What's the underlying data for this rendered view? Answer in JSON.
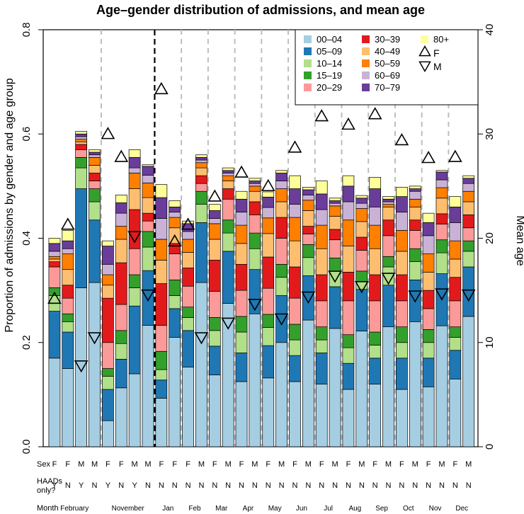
{
  "chart_data": {
    "type": "bar",
    "stacked": true,
    "title": "Age–gender distribution of admissions, and mean age",
    "ylabel": "Proportion of admissions by gender and age group",
    "y2label": "Mean age",
    "ylim": [
      0,
      0.8
    ],
    "y2lim": [
      0,
      40
    ],
    "yticks": [
      "0.0",
      "0.2",
      "0.4",
      "0.6",
      "0.8"
    ],
    "y2ticks": [
      "0",
      "10",
      "20",
      "30",
      "40"
    ],
    "row_labels": {
      "sex": "Sex",
      "haads": "HAADs\nonly?",
      "month": "Month"
    },
    "age_groups": [
      "00–04",
      "05–09",
      "10–14",
      "15–19",
      "20–29",
      "30–39",
      "40–49",
      "50–59",
      "60–69",
      "70–79",
      "80+"
    ],
    "colors": [
      "#a6cee3",
      "#1f78b4",
      "#b2df8a",
      "#33a02c",
      "#fb9a99",
      "#e31a1c",
      "#fdbf6f",
      "#ff7f00",
      "#cab2d6",
      "#6a3d9a",
      "#ffff99"
    ],
    "legend": {
      "position": "top-right",
      "f_label": "F",
      "m_label": "M",
      "f_symbol": "△",
      "m_symbol": "▽"
    },
    "bars": [
      {
        "sex": "F",
        "haads": "Y",
        "segments": [
          0.17,
          0.09,
          0.03,
          0.015,
          0.04,
          0.01,
          0.005,
          0.005,
          0.01,
          0.015,
          0.01
        ],
        "mean_age": 14.2
      },
      {
        "sex": "F",
        "haads": "N",
        "segments": [
          0.15,
          0.07,
          0.02,
          0.015,
          0.03,
          0.025,
          0.03,
          0.03,
          0.01,
          0.015,
          0.02
        ],
        "mean_age": 21.3
      },
      {
        "sex": "M",
        "haads": "Y",
        "segments": [
          0.305,
          0.19,
          0.04,
          0.02,
          0.015,
          0.01,
          0.005,
          0.005,
          0.005,
          0.005,
          0.005
        ],
        "mean_age": 7.8
      },
      {
        "sex": "M",
        "haads": "N",
        "segments": [
          0.315,
          0.12,
          0.035,
          0.025,
          0.015,
          0.015,
          0.015,
          0.015,
          0.005,
          0.005,
          0.005
        ],
        "mean_age": 10.5
      },
      {
        "sex": "F",
        "haads": "Y",
        "segments": [
          0.05,
          0.06,
          0.025,
          0.015,
          0.05,
          0.085,
          0.025,
          0.02,
          0.02,
          0.035,
          0.01
        ],
        "mean_age": 30.0
      },
      {
        "sex": "F",
        "haads": "N",
        "segments": [
          0.113,
          0.055,
          0.03,
          0.025,
          0.05,
          0.08,
          0.045,
          0.025,
          0.025,
          0.02,
          0.015
        ],
        "mean_age": 27.8
      },
      {
        "sex": "M",
        "haads": "Y",
        "segments": [
          0.14,
          0.13,
          0.035,
          0.025,
          0.05,
          0.075,
          0.04,
          0.03,
          0.01,
          0.02,
          0.015
        ],
        "mean_age": 20.2
      },
      {
        "sex": "M",
        "haads": "N",
        "segments": [
          0.233,
          0.105,
          0.045,
          0.03,
          0.02,
          0.015,
          0.03,
          0.028,
          0.015,
          0.017,
          0.003
        ],
        "mean_age": 14.6
      },
      {
        "sex": "F",
        "haads": "N",
        "segments": [
          0.093,
          0.035,
          0.02,
          0.035,
          0.05,
          0.08,
          0.045,
          0.04,
          0.04,
          0.04,
          0.025
        ],
        "mean_age": 34.3
      },
      {
        "sex": "F",
        "haads": "N",
        "segments": [
          0.21,
          0.055,
          0.025,
          0.03,
          0.05,
          0.02,
          0.03,
          0.02,
          0.01,
          0.01,
          0.012
        ],
        "mean_age": 19.7
      },
      {
        "sex": "F",
        "haads": "N",
        "segments": [
          0.153,
          0.07,
          0.025,
          0.02,
          0.04,
          0.035,
          0.03,
          0.025,
          0.015,
          0.015,
          0.005
        ],
        "mean_age": 21.3
      },
      {
        "sex": "M",
        "haads": "N",
        "segments": [
          0.315,
          0.115,
          0.035,
          0.025,
          0.015,
          0.015,
          0.015,
          0.01,
          0.005,
          0.005,
          0.005
        ],
        "mean_age": 10.5
      },
      {
        "sex": "F",
        "haads": "N",
        "segments": [
          0.138,
          0.055,
          0.03,
          0.025,
          0.05,
          0.06,
          0.04,
          0.03,
          0.01,
          0.015,
          0.012
        ],
        "mean_age": 24.0
      },
      {
        "sex": "M",
        "haads": "N",
        "segments": [
          0.275,
          0.1,
          0.035,
          0.025,
          0.04,
          0.02,
          0.015,
          0.01,
          0.005,
          0.005,
          0.005
        ],
        "mean_age": 11.9
      },
      {
        "sex": "F",
        "haads": "N",
        "segments": [
          0.125,
          0.055,
          0.04,
          0.03,
          0.05,
          0.05,
          0.04,
          0.035,
          0.025,
          0.025,
          0.015
        ],
        "mean_age": 26.3
      },
      {
        "sex": "M",
        "haads": "N",
        "segments": [
          0.255,
          0.085,
          0.04,
          0.03,
          0.035,
          0.025,
          0.02,
          0.01,
          0.005,
          0.005,
          0.005
        ],
        "mean_age": 13.7
      },
      {
        "sex": "F",
        "haads": "N",
        "segments": [
          0.132,
          0.062,
          0.035,
          0.025,
          0.05,
          0.06,
          0.045,
          0.03,
          0.02,
          0.02,
          0.01
        ],
        "mean_age": 25.0
      },
      {
        "sex": "M",
        "haads": "N",
        "segments": [
          0.2,
          0.09,
          0.035,
          0.025,
          0.05,
          0.04,
          0.03,
          0.025,
          0.015,
          0.015,
          0.005
        ],
        "mean_age": 12.3
      },
      {
        "sex": "F",
        "haads": "N",
        "segments": [
          0.125,
          0.05,
          0.03,
          0.03,
          0.05,
          0.06,
          0.05,
          0.045,
          0.025,
          0.03,
          0.025
        ],
        "mean_age": 28.7
      },
      {
        "sex": "M",
        "haads": "N",
        "segments": [
          0.243,
          0.085,
          0.035,
          0.025,
          0.02,
          0.015,
          0.03,
          0.02,
          0.01,
          0.01,
          0.005
        ],
        "mean_age": 14.4
      },
      {
        "sex": "F",
        "haads": "N",
        "segments": [
          0.12,
          0.06,
          0.025,
          0.025,
          0.05,
          0.05,
          0.05,
          0.045,
          0.03,
          0.03,
          0.025
        ],
        "mean_age": 31.7
      },
      {
        "sex": "M",
        "haads": "N",
        "segments": [
          0.227,
          0.08,
          0.03,
          0.025,
          0.035,
          0.02,
          0.025,
          0.02,
          0.005,
          0.005,
          0.005
        ],
        "mean_age": 16.4
      },
      {
        "sex": "F",
        "haads": "N",
        "segments": [
          0.11,
          0.05,
          0.03,
          0.025,
          0.065,
          0.055,
          0.05,
          0.05,
          0.035,
          0.03,
          0.02
        ],
        "mean_age": 30.9
      },
      {
        "sex": "M",
        "haads": "N",
        "segments": [
          0.222,
          0.08,
          0.015,
          0.02,
          0.04,
          0.025,
          0.03,
          0.025,
          0.01,
          0.01,
          0.005
        ],
        "mean_age": 15.4
      },
      {
        "sex": "F",
        "haads": "N",
        "segments": [
          0.12,
          0.05,
          0.025,
          0.025,
          0.06,
          0.05,
          0.05,
          0.045,
          0.035,
          0.035,
          0.022
        ],
        "mean_age": 31.9
      },
      {
        "sex": "M",
        "haads": "N",
        "segments": [
          0.23,
          0.08,
          0.035,
          0.02,
          0.04,
          0.03,
          0.025,
          0.005,
          0.005,
          0.005,
          0.005
        ],
        "mean_age": 16.2
      },
      {
        "sex": "F",
        "haads": "N",
        "segments": [
          0.11,
          0.06,
          0.03,
          0.03,
          0.05,
          0.05,
          0.045,
          0.04,
          0.035,
          0.03,
          0.018
        ],
        "mean_age": 29.4
      },
      {
        "sex": "M",
        "haads": "N",
        "segments": [
          0.24,
          0.08,
          0.035,
          0.025,
          0.035,
          0.02,
          0.025,
          0.015,
          0.015,
          0.005,
          0.005
        ],
        "mean_age": 14.5
      },
      {
        "sex": "F",
        "haads": "N",
        "segments": [
          0.115,
          0.055,
          0.03,
          0.025,
          0.04,
          0.035,
          0.035,
          0.035,
          0.035,
          0.025,
          0.018
        ],
        "mean_age": 27.7
      },
      {
        "sex": "M",
        "haads": "N",
        "segments": [
          0.232,
          0.1,
          0.04,
          0.025,
          0.03,
          0.02,
          0.03,
          0.02,
          0.015,
          0.015,
          0.003
        ],
        "mean_age": 14.7
      },
      {
        "sex": "F",
        "haads": "N",
        "segments": [
          0.13,
          0.055,
          0.025,
          0.02,
          0.05,
          0.045,
          0.035,
          0.035,
          0.035,
          0.03,
          0.02
        ],
        "mean_age": 27.8
      },
      {
        "sex": "M",
        "haads": "N",
        "segments": [
          0.25,
          0.095,
          0.03,
          0.02,
          0.025,
          0.025,
          0.025,
          0.02,
          0.015,
          0.01,
          0.005
        ],
        "mean_age": 14.6
      }
    ],
    "month_labels": [
      {
        "label": "February",
        "center_bar": 1.5
      },
      {
        "label": "November",
        "center_bar": 5.5
      },
      {
        "label": "Jan",
        "center_bar": 8.5
      },
      {
        "label": "Feb",
        "center_bar": 10.5
      },
      {
        "label": "Mar",
        "center_bar": 12.5
      },
      {
        "label": "Apr",
        "center_bar": 14.5
      },
      {
        "label": "May",
        "center_bar": 16.5
      },
      {
        "label": "Jun",
        "center_bar": 18.5
      },
      {
        "label": "Jul",
        "center_bar": 20.5
      },
      {
        "label": "Aug",
        "center_bar": 22.5
      },
      {
        "label": "Sep",
        "center_bar": 24.5
      },
      {
        "label": "Oct",
        "center_bar": 26.5
      },
      {
        "label": "Nov",
        "center_bar": 28.5
      },
      {
        "label": "Dec",
        "center_bar": 30.5
      }
    ],
    "dashed_dividers_after_bar": [
      3,
      9,
      11,
      13,
      15,
      17,
      19,
      21,
      23,
      25,
      27,
      29
    ],
    "heavy_divider_after_bar": 7
  }
}
